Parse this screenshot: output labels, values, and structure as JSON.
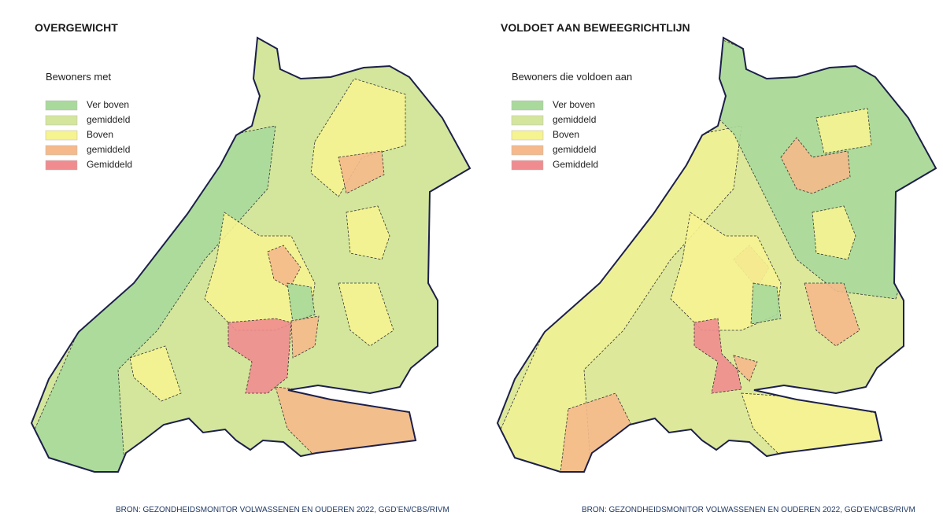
{
  "maps": [
    {
      "title": "OVERGEWICHT",
      "legend": {
        "title": "Bewoners met",
        "items": [
          {
            "label": "Ver boven",
            "color": "#a9d99b"
          },
          {
            "label": "gemiddeld",
            "color": "#d3e69c"
          },
          {
            "label": "Boven",
            "color": "#f6f391"
          },
          {
            "label": "gemiddeld",
            "color": "#f5b98b"
          },
          {
            "label": "Gemiddeld",
            "color": "#f08c8f"
          }
        ]
      },
      "source": "BRON: GEZONDHEIDSMONITOR VOLWASSENEN EN OUDEREN 2022, GGD’EN/CBS/RIVM"
    },
    {
      "title": "VOLDOET AAN BEWEEGRICHTLIJN",
      "legend": {
        "title": "Bewoners die voldoen aan",
        "items": [
          {
            "label": "Ver boven",
            "color": "#a9d99b"
          },
          {
            "label": "gemiddeld",
            "color": "#d3e69c"
          },
          {
            "label": "Boven",
            "color": "#f6f391"
          },
          {
            "label": "gemiddeld",
            "color": "#f5b98b"
          },
          {
            "label": "Gemiddeld",
            "color": "#f08c8f"
          }
        ]
      },
      "source": "BRON: GEZONDHEIDSMONITOR VOLWASSENEN EN OUDEREN 2022, GGD’EN/CBS/RIVM"
    }
  ]
}
